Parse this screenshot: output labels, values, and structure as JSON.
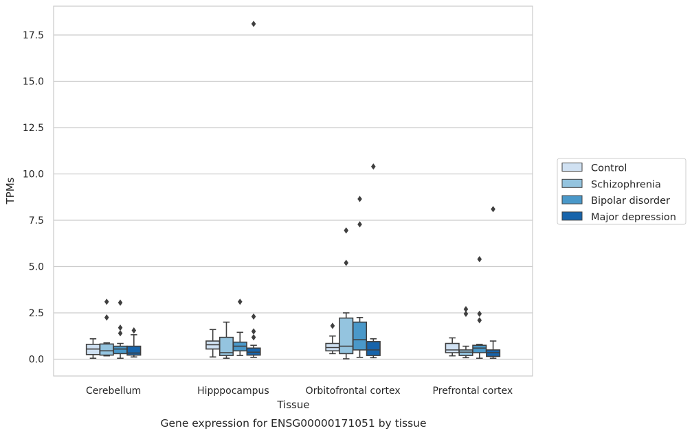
{
  "chart_data": {
    "type": "box",
    "title": "",
    "caption": "Gene expression for ENSG00000171051 by tissue",
    "xlabel": "Tissue",
    "ylabel": "TPMs",
    "ylim": [
      -0.9,
      19.0
    ],
    "yticks": [
      0.0,
      2.5,
      5.0,
      7.5,
      10.0,
      12.5,
      15.0,
      17.5
    ],
    "ytick_labels": [
      "0.0",
      "2.5",
      "5.0",
      "7.5",
      "10.0",
      "12.5",
      "15.0",
      "17.5"
    ],
    "grid": "horizontal",
    "legend_position": "right",
    "categories": [
      "Cerebellum",
      "Hipppocampus",
      "Orbitofrontal cortex",
      "Prefrontal cortex"
    ],
    "series": [
      {
        "name": "Control",
        "color": "#d0e1f2",
        "boxes": [
          {
            "whislo": 0.05,
            "q1": 0.25,
            "med": 0.55,
            "q3": 0.8,
            "whishi": 1.1,
            "fliers": []
          },
          {
            "whislo": 0.12,
            "q1": 0.55,
            "med": 0.78,
            "q3": 0.98,
            "whishi": 1.6,
            "fliers": []
          },
          {
            "whislo": 0.3,
            "q1": 0.45,
            "med": 0.63,
            "q3": 0.85,
            "whishi": 1.25,
            "fliers": [
              1.8
            ]
          },
          {
            "whislo": 0.18,
            "q1": 0.35,
            "med": 0.5,
            "q3": 0.85,
            "whishi": 1.15,
            "fliers": []
          }
        ]
      },
      {
        "name": "Schizophrenia",
        "color": "#94c4df",
        "boxes": [
          {
            "whislo": 0.18,
            "q1": 0.22,
            "med": 0.45,
            "q3": 0.82,
            "whishi": 0.88,
            "fliers": [
              2.25,
              3.1
            ]
          },
          {
            "whislo": 0.05,
            "q1": 0.2,
            "med": 0.35,
            "q3": 1.18,
            "whishi": 2.0,
            "fliers": []
          },
          {
            "whislo": 0.02,
            "q1": 0.3,
            "med": 0.7,
            "q3": 2.22,
            "whishi": 2.5,
            "fliers": [
              5.2,
              6.95
            ]
          },
          {
            "whislo": 0.08,
            "q1": 0.2,
            "med": 0.38,
            "q3": 0.5,
            "whishi": 0.7,
            "fliers": [
              2.45,
              2.7
            ]
          }
        ]
      },
      {
        "name": "Bipolar disorder",
        "color": "#4a98c9",
        "boxes": [
          {
            "whislo": 0.05,
            "q1": 0.3,
            "med": 0.55,
            "q3": 0.7,
            "whishi": 0.85,
            "fliers": [
              1.4,
              1.7,
              3.05
            ]
          },
          {
            "whislo": 0.2,
            "q1": 0.45,
            "med": 0.7,
            "q3": 0.92,
            "whishi": 1.45,
            "fliers": [
              3.1
            ]
          },
          {
            "whislo": 0.1,
            "q1": 0.5,
            "med": 1.05,
            "q3": 2.0,
            "whishi": 2.25,
            "fliers": [
              7.28,
              8.65
            ]
          },
          {
            "whislo": 0.05,
            "q1": 0.35,
            "med": 0.6,
            "q3": 0.75,
            "whishi": 0.8,
            "fliers": [
              2.1,
              2.45,
              5.4
            ]
          }
        ]
      },
      {
        "name": "Major depression",
        "color": "#1764ab",
        "boxes": [
          {
            "whislo": 0.12,
            "q1": 0.22,
            "med": 0.33,
            "q3": 0.7,
            "whishi": 1.32,
            "fliers": [
              1.55
            ]
          },
          {
            "whislo": 0.1,
            "q1": 0.22,
            "med": 0.38,
            "q3": 0.6,
            "whishi": 0.75,
            "fliers": [
              1.18,
              1.5,
              2.3,
              18.1
            ]
          },
          {
            "whislo": 0.08,
            "q1": 0.2,
            "med": 0.5,
            "q3": 0.95,
            "whishi": 1.1,
            "fliers": [
              10.4
            ]
          },
          {
            "whislo": 0.05,
            "q1": 0.15,
            "med": 0.35,
            "q3": 0.5,
            "whishi": 0.98,
            "fliers": [
              8.1
            ]
          }
        ]
      }
    ]
  }
}
